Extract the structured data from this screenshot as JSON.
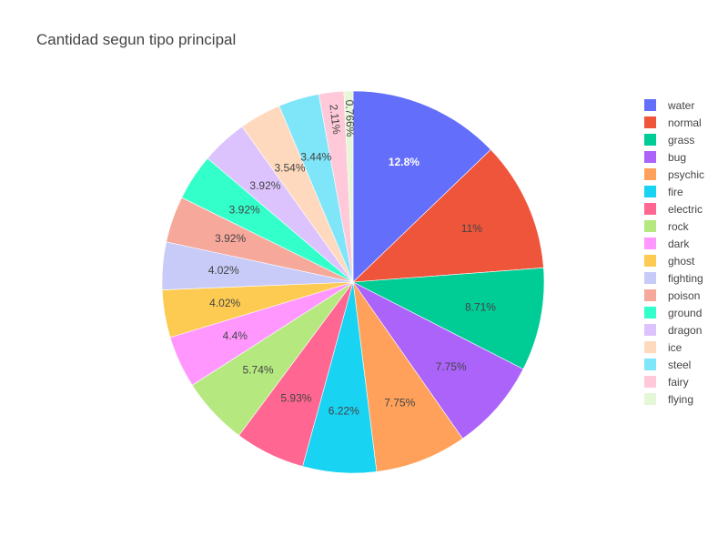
{
  "chart_data": {
    "type": "pie",
    "title": "Cantidad segun tipo principal",
    "legend_position": "right",
    "sort": "descending, clockwise from top",
    "slices": [
      {
        "name": "water",
        "value": 12.8,
        "label": "12.8%",
        "color": "#636efa"
      },
      {
        "name": "normal",
        "value": 11.0,
        "label": "11%",
        "color": "#EF553B"
      },
      {
        "name": "grass",
        "value": 8.71,
        "label": "8.71%",
        "color": "#00cc96"
      },
      {
        "name": "bug",
        "value": 7.75,
        "label": "7.75%",
        "color": "#ab63fa"
      },
      {
        "name": "psychic",
        "value": 7.75,
        "label": "7.75%",
        "color": "#FFA15A"
      },
      {
        "name": "fire",
        "value": 6.22,
        "label": "6.22%",
        "color": "#19d3f3"
      },
      {
        "name": "electric",
        "value": 5.93,
        "label": "5.93%",
        "color": "#FF6692"
      },
      {
        "name": "rock",
        "value": 5.74,
        "label": "5.74%",
        "color": "#B6E880"
      },
      {
        "name": "dark",
        "value": 4.4,
        "label": "4.4%",
        "color": "#FF97FF"
      },
      {
        "name": "ghost",
        "value": 4.02,
        "label": "4.02%",
        "color": "#FECB52"
      },
      {
        "name": "fighting",
        "value": 4.02,
        "label": "4.02%",
        "color": "#c8cbf8"
      },
      {
        "name": "poison",
        "value": 3.92,
        "label": "3.92%",
        "color": "#f6a89b"
      },
      {
        "name": "ground",
        "value": 3.92,
        "label": "3.92%",
        "color": "#33ffcb"
      },
      {
        "name": "dragon",
        "value": 3.92,
        "label": "3.92%",
        "color": "#ddc3fd"
      },
      {
        "name": "ice",
        "value": 3.54,
        "label": "3.54%",
        "color": "#ffd9bd"
      },
      {
        "name": "steel",
        "value": 3.44,
        "label": "3.44%",
        "color": "#7fe5f9"
      },
      {
        "name": "fairy",
        "value": 2.11,
        "label": "2.11%",
        "color": "#ffc9d9"
      },
      {
        "name": "flying",
        "value": 0.766,
        "label": "0.766%",
        "color": "#e6f7d7"
      }
    ]
  }
}
